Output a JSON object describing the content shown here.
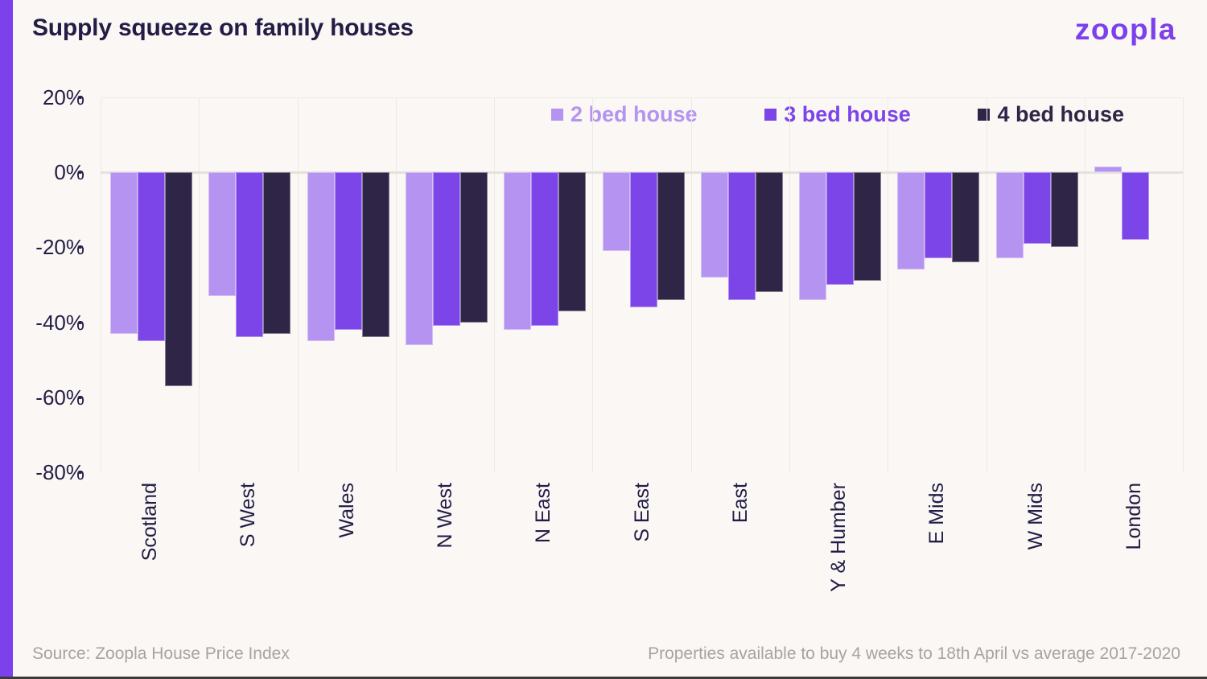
{
  "header": {
    "title": "Supply squeeze on family houses",
    "logo_text": "zoopla"
  },
  "chart_data": {
    "type": "bar",
    "title": "Supply squeeze on family houses",
    "categories": [
      "Scotland",
      "S West",
      "Wales",
      "N West",
      "N East",
      "S East",
      "East",
      "Y & Humber",
      "E Mids",
      "W Mids",
      "London"
    ],
    "series": [
      {
        "name": "2 bed house",
        "color": "#B593F0",
        "values": [
          -43,
          -33,
          -45,
          -46,
          -42,
          -21,
          -28,
          -34,
          -26,
          -23,
          1.5
        ]
      },
      {
        "name": "3 bed house",
        "color": "#7C45E8",
        "values": [
          -45,
          -44,
          -42,
          -41,
          -41,
          -36,
          -34,
          -30,
          -23,
          -19,
          -18
        ]
      },
      {
        "name": "4 bed house",
        "color": "#2F2547",
        "values": [
          -57,
          -43,
          -44,
          -40,
          -37,
          -34,
          -32,
          -29,
          -24,
          -20,
          0
        ]
      }
    ],
    "y_ticks": [
      "20%",
      "0%",
      "-20%",
      "-40%",
      "-60%",
      "-80%"
    ],
    "ylim": [
      -80,
      20
    ],
    "unit": "%",
    "grid": "vertical column separators, emphasized zero line",
    "legend_position": "top"
  },
  "footer": {
    "source": "Source: Zoopla House Price Index",
    "note": "Properties available to buy 4 weeks to 18th April vs average 2017-2020"
  },
  "colors": {
    "accent_purple": "#7C40EC",
    "background": "#FAF7F4",
    "title_text": "#231D46",
    "axis_text": "#231D46",
    "footer_text": "#A6A3A1",
    "zero_line": "#E5E1DD",
    "gridline": "#EDE9E6",
    "bottom_edge": "#3B3B3B"
  }
}
